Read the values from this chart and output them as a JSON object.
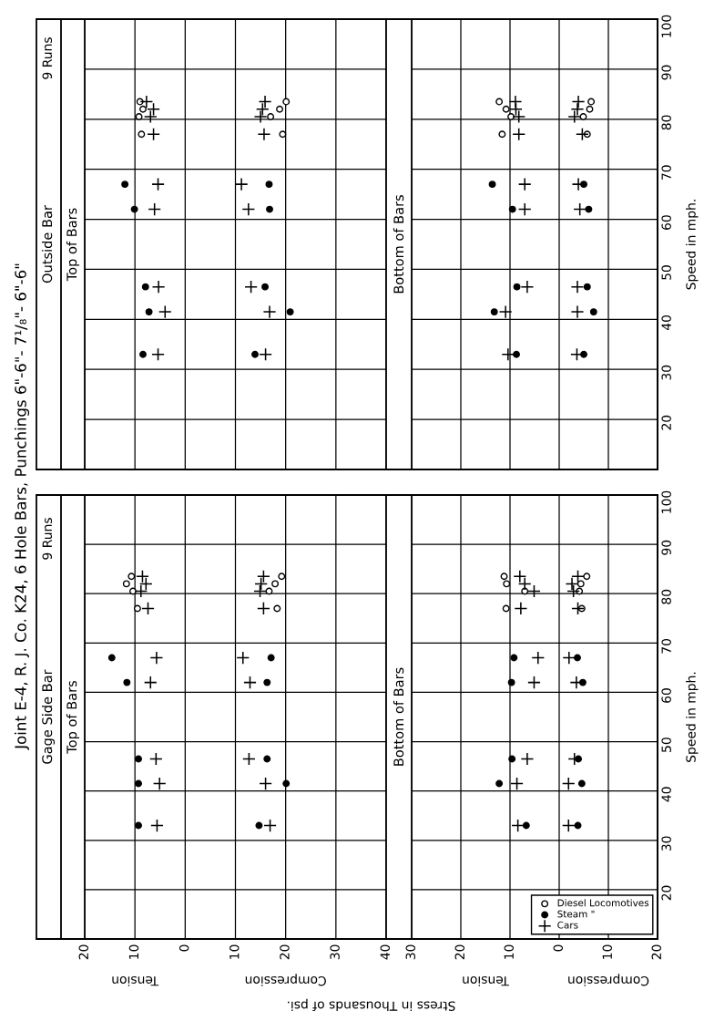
{
  "chart_data": [
    {
      "type": "scatter",
      "title": "Top of Bars",
      "subtitle": "Gage Side Bar",
      "xlabel": "Stress in Thousands of psi.",
      "annotations": [
        "Joint E-4, R. J. Co. K24, 6 Hole Bars, Punchings 6\"-6\"- 7¹/₈\"- 6\"-6\"",
        "9 Runs",
        "Tension",
        "Compression"
      ],
      "xlim": [
        20,
        -40
      ],
      "xticks": [
        20,
        10,
        0,
        {
          "value": -10,
          "label": "10"
        },
        {
          "value": -20,
          "label": "20"
        },
        {
          "value": -30,
          "label": "30"
        },
        {
          "value": -40,
          "label": "40"
        }
      ],
      "ylim": [
        10,
        100
      ],
      "yticks": [
        20,
        30,
        40,
        50,
        60,
        70,
        80,
        90,
        100
      ],
      "grid": true,
      "tick_labels": "x",
      "series": [
        {
          "color": "#ffffff",
          "marker": "circle",
          "x": [
            9.5,
            10.4,
            11.7,
            10.7,
            -18.3,
            -16.7,
            -17.9,
            -19.2
          ],
          "values": [
            77,
            80.5,
            82,
            83.5,
            77,
            80.5,
            82,
            83.5
          ]
        },
        {
          "color": "#000000",
          "marker": "circle",
          "x": [
            9.3,
            9.3,
            9.3,
            11.6,
            14.6,
            -14.7,
            -20.1,
            -16.3,
            -16.3,
            -17.1
          ],
          "values": [
            33,
            41.5,
            46.5,
            62,
            67,
            33,
            41.5,
            46.5,
            62,
            67
          ]
        },
        {
          "color": "#000000",
          "marker": "cross",
          "x": [
            5.6,
            5.1,
            5.8,
            6.9,
            5.7,
            7.4,
            8.8,
            7.8,
            8.5,
            -16.9,
            -16.0,
            -12.7,
            -12.9,
            -11.5,
            -15.6,
            -14.9,
            -15.1,
            -15.6
          ],
          "values": [
            33,
            41.5,
            46.5,
            62,
            67,
            77,
            80.5,
            82,
            83.5,
            33,
            41.5,
            46.5,
            62,
            67,
            77,
            80.5,
            82,
            83.5
          ]
        }
      ]
    },
    {
      "type": "scatter",
      "title": "Bottom of Bars",
      "ylabel": "Speed in mph.",
      "annotations": [
        "Tension",
        "Compression"
      ],
      "xlim": [
        30,
        -20
      ],
      "xticks": [
        30,
        20,
        10,
        0,
        {
          "value": -10,
          "label": "10"
        },
        {
          "value": -20,
          "label": "20"
        }
      ],
      "ylim": [
        10,
        100
      ],
      "yticks": [
        20,
        30,
        40,
        50,
        60,
        70,
        80,
        90,
        100
      ],
      "grid": true,
      "legend": "bottom right",
      "series": [
        {
          "name": "Diesel Locomotives",
          "color": "#ffffff",
          "marker": "circle",
          "x": [
            10.8,
            7.0,
            10.7,
            11.2,
            -4.6,
            -4.1,
            -4.4,
            -5.6
          ],
          "values": [
            77,
            80.5,
            82,
            83.5,
            77,
            80.5,
            82,
            83.5
          ]
        },
        {
          "name": "Steam \"",
          "color": "#000000",
          "marker": "circle",
          "x": [
            6.7,
            12.2,
            9.6,
            9.7,
            9.2,
            -3.8,
            -4.6,
            -3.9,
            -4.8,
            -3.7
          ],
          "values": [
            33,
            41.5,
            46.5,
            62,
            67,
            33,
            41.5,
            46.5,
            62,
            67
          ]
        },
        {
          "name": "Cars",
          "color": "#000000",
          "marker": "cross",
          "x": [
            8.4,
            8.6,
            6.5,
            5.1,
            4.3,
            7.8,
            5.1,
            7.0,
            8.0,
            -1.9,
            -1.9,
            -3.1,
            -3.5,
            -2.0,
            -3.8,
            -2.9,
            -2.6,
            -3.8
          ],
          "values": [
            33,
            41.5,
            46.5,
            62,
            67,
            77,
            80.5,
            82,
            83.5,
            33,
            41.5,
            46.5,
            62,
            67,
            77,
            80.5,
            82,
            83.5
          ]
        }
      ]
    },
    {
      "type": "scatter",
      "title": "Top of Bars",
      "subtitle": "Outside Bar",
      "annotations": [
        "9 Runs"
      ],
      "xlim": [
        20,
        -40
      ],
      "ylim": [
        10,
        100
      ],
      "grid": true,
      "tick_labels": false,
      "series": [
        {
          "color": "#ffffff",
          "marker": "circle",
          "x": [
            8.7,
            9.2,
            8.4,
            9.0,
            -19.4,
            -17.0,
            -18.8,
            -20.1
          ],
          "values": [
            77,
            80.5,
            82,
            83.5,
            77,
            80.5,
            82,
            83.5
          ]
        },
        {
          "color": "#000000",
          "marker": "circle",
          "x": [
            8.4,
            7.2,
            7.9,
            10.1,
            12.0,
            -13.9,
            -20.9,
            -15.9,
            -16.8,
            -16.7
          ],
          "values": [
            33,
            41.5,
            46.5,
            62,
            67,
            33,
            41.5,
            46.5,
            62,
            67
          ]
        },
        {
          "color": "#000000",
          "marker": "cross",
          "x": [
            5.4,
            4.0,
            5.3,
            6.1,
            5.4,
            6.3,
            6.9,
            6.3,
            7.7,
            -16.0,
            -16.8,
            -13.1,
            -12.6,
            -11.2,
            -15.7,
            -15.0,
            -15.4,
            -15.9
          ],
          "values": [
            33,
            41.5,
            46.5,
            62,
            67,
            77,
            80.5,
            82,
            83.5,
            33,
            41.5,
            46.5,
            62,
            67,
            77,
            80.5,
            82,
            83.5
          ]
        }
      ]
    },
    {
      "type": "scatter",
      "title": "Bottom of Bars",
      "ylabel": "Speed in mph.",
      "xlim": [
        30,
        -20
      ],
      "ylim": [
        10,
        100
      ],
      "yticks": [
        20,
        30,
        40,
        50,
        60,
        70,
        80,
        90,
        100
      ],
      "grid": true,
      "tick_labels": "y",
      "series": [
        {
          "color": "#ffffff",
          "marker": "circle",
          "x": [
            11.6,
            9.8,
            10.8,
            12.2,
            -5.7,
            -4.9,
            -6.2,
            -6.5
          ],
          "values": [
            77,
            80.5,
            82,
            83.5,
            77,
            80.5,
            82,
            83.5
          ]
        },
        {
          "color": "#000000",
          "marker": "circle",
          "x": [
            8.7,
            13.2,
            8.6,
            9.5,
            13.6,
            -5.0,
            -7.0,
            -5.7,
            -6.0,
            -5.0
          ],
          "values": [
            33,
            41.5,
            46.5,
            62,
            67,
            33,
            41.5,
            46.5,
            62,
            67
          ]
        },
        {
          "color": "#000000",
          "marker": "cross",
          "x": [
            10.4,
            10.9,
            6.5,
            7.0,
            7.0,
            8.2,
            8.2,
            8.8,
            8.9,
            -3.6,
            -3.7,
            -3.7,
            -4.2,
            -3.9,
            -4.7,
            -3.1,
            -3.7,
            -3.9
          ],
          "values": [
            33,
            41.5,
            46.5,
            62,
            67,
            77,
            80.5,
            82,
            83.5,
            33,
            41.5,
            46.5,
            62,
            67,
            77,
            80.5,
            82,
            83.5
          ]
        }
      ]
    }
  ]
}
